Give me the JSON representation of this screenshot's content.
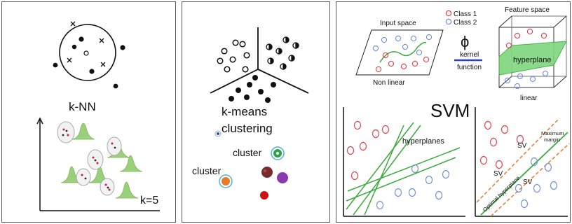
{
  "knn": {
    "title": "k-NN",
    "k_label": "k=5"
  },
  "kmeans": {
    "title_line1": "k-means",
    "title_line2": "clustering",
    "cluster_label_1": "cluster",
    "cluster_label_2": "cluster"
  },
  "svm": {
    "title": "SVM",
    "input_space": "Input space",
    "non_linear": "Non linear",
    "legend_class1": "Class 1",
    "legend_class2": "Class 2",
    "phi": "ϕ",
    "kernel": "kernel",
    "function": "function",
    "feature_space": "Feature space",
    "hyperplane": "hyperplane",
    "linear": "linear",
    "hyperplanes": "hyperplanes",
    "sv1": "SV",
    "sv2": "SV",
    "sv3": "SV",
    "maximum": "Maximum",
    "margin": "margin",
    "optimal_hyperplane": "Optimal hyperplane"
  },
  "colors": {
    "class1": "#e0404a",
    "class2": "#6f8fd8",
    "hyperplane_green": "#3aa93a",
    "plane_fill": "#7fd77f",
    "margin_orange": "#e87a2a"
  }
}
